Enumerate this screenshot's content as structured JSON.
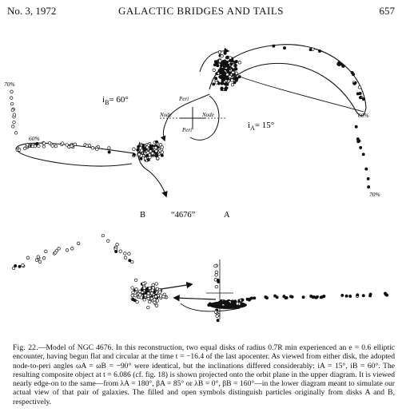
{
  "header": {
    "left": "No. 3, 1972",
    "title": "GALACTIC BRIDGES AND TAILS",
    "page": "657"
  },
  "figure": {
    "upper": {
      "label_i_b": "i",
      "label_i_b_sub": "B",
      "label_i_b_val": "= 60°",
      "label_i_a": "i",
      "label_i_a_sub": "A",
      "label_i_a_val": "= 15°",
      "pct_70_left": "70%",
      "pct_60_left": "60%",
      "pct_60_right": "60%",
      "pct_70_right": "70%",
      "peri_top": "Peri",
      "node_left": "Node",
      "node_right": "Node",
      "peri_bottom": "Peri",
      "label_b": "B",
      "label_name": "“4676”",
      "label_a": "A"
    }
  },
  "caption": {
    "lead": "Fig. 22.",
    "text": "—Model of NGC 4676. In this reconstruction, two equal disks of radius 0.7R min experienced an e = 0.6 elliptic encounter, having begun flat and circular at the time t = −16.4 of the last apocenter. As viewed from either disk, the adopted node-to-peri angles ωA = ωB = −90° were identical, but the inclinations differed considerably: iA = 15°, iB = 60°. The resulting composite object at t = 6.086 (cf. fig. 18) is shown projected onto the orbit plane in the upper diagram. It is viewed nearly edge-on to the same—from λA = 180°, βA = 85° or λB = 0°, βB = 160°—in the lower diagram meant to simulate our actual view of that pair of galaxies. The filled and open symbols distinguish particles originally from disks A and B, respectively."
  }
}
